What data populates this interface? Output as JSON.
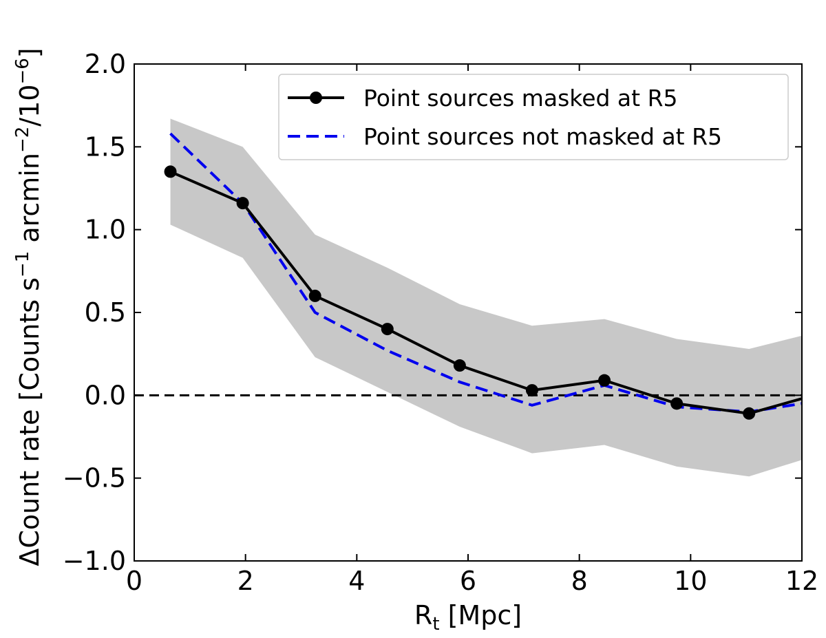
{
  "chart_data": {
    "type": "line",
    "xlabel_main": "R",
    "xlabel_sub": "t",
    "xlabel_rest": " [Mpc]",
    "ylabel_pre": "ΔCount rate [Counts s",
    "ylabel_sup1": "−1",
    "ylabel_mid": " arcmin",
    "ylabel_sup2": "−2",
    "ylabel_mid2": "/10",
    "ylabel_sup3": "−6",
    "ylabel_post": "]",
    "xlim": [
      0,
      12
    ],
    "ylim": [
      -1.0,
      2.0
    ],
    "xticks": [
      0,
      2,
      4,
      6,
      8,
      10,
      12
    ],
    "xtick_labels": [
      "0",
      "2",
      "4",
      "6",
      "8",
      "10",
      "12"
    ],
    "yticks": [
      -1.0,
      -0.5,
      0.0,
      0.5,
      1.0,
      1.5,
      2.0
    ],
    "ytick_labels": [
      "−1.0",
      "−0.5",
      "0.0",
      "0.5",
      "1.0",
      "1.5",
      "2.0"
    ],
    "reference_line_y": 0.0,
    "legend_position": "top-right",
    "band": {
      "x": [
        0.65,
        1.95,
        3.25,
        4.55,
        5.85,
        7.15,
        8.45,
        9.75,
        11.05,
        12.0
      ],
      "upper": [
        1.67,
        1.5,
        0.97,
        0.77,
        0.55,
        0.42,
        0.46,
        0.34,
        0.28,
        0.36
      ],
      "lower": [
        1.03,
        0.83,
        0.23,
        0.02,
        -0.19,
        -0.35,
        -0.3,
        -0.43,
        -0.49,
        -0.39
      ],
      "color": "#c8c8c8"
    },
    "series": [
      {
        "name": "Point sources masked at R5",
        "style": "solid-marker",
        "color": "#000000",
        "x": [
          0.65,
          1.95,
          3.25,
          4.55,
          5.85,
          7.15,
          8.45,
          9.75,
          11.05,
          12.0
        ],
        "y": [
          1.35,
          1.16,
          0.6,
          0.4,
          0.18,
          0.03,
          0.09,
          -0.05,
          -0.11,
          -0.02
        ],
        "markers": [
          true,
          true,
          true,
          true,
          true,
          true,
          true,
          true,
          true,
          false
        ]
      },
      {
        "name": "Point sources not masked at R5",
        "style": "dashed",
        "color": "#0000ee",
        "x": [
          0.65,
          1.95,
          3.25,
          4.55,
          5.85,
          7.15,
          8.45,
          9.75,
          11.05,
          12.0
        ],
        "y": [
          1.58,
          1.16,
          0.5,
          0.27,
          0.08,
          -0.06,
          0.06,
          -0.07,
          -0.1,
          -0.05
        ]
      }
    ]
  }
}
